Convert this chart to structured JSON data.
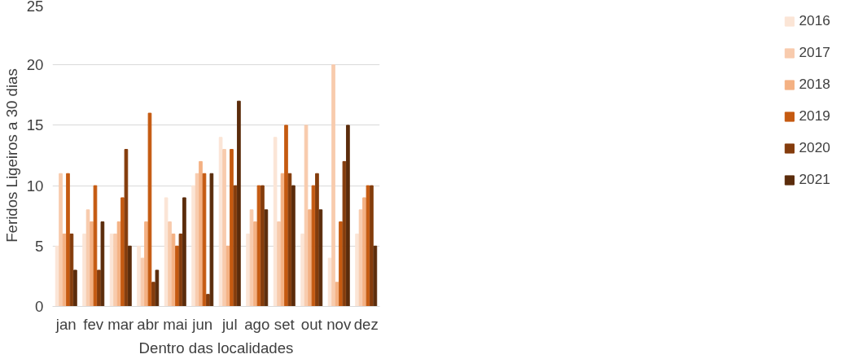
{
  "chart_data": {
    "type": "bar",
    "xlabel": "Dentro das localidades",
    "ylabel": "Feridos Ligeiros a 30 dias",
    "categories": [
      "jan",
      "fev",
      "mar",
      "abr",
      "mai",
      "jun",
      "jul",
      "ago",
      "set",
      "out",
      "nov",
      "dez"
    ],
    "series": [
      {
        "name": "2016",
        "color": "#fbe5d6",
        "values": [
          5,
          6,
          6,
          5,
          9,
          10,
          14,
          6,
          14,
          6,
          4,
          6
        ]
      },
      {
        "name": "2017",
        "color": "#f8cbad",
        "values": [
          11,
          8,
          6,
          4,
          7,
          11,
          13,
          8,
          7,
          15,
          20,
          8
        ]
      },
      {
        "name": "2018",
        "color": "#f4b183",
        "values": [
          6,
          7,
          7,
          7,
          6,
          12,
          5,
          7,
          11,
          8,
          2,
          9
        ]
      },
      {
        "name": "2019",
        "color": "#c55a11",
        "values": [
          11,
          10,
          9,
          16,
          5,
          11,
          13,
          10,
          15,
          10,
          7,
          10
        ]
      },
      {
        "name": "2020",
        "color": "#843c0c",
        "values": [
          6,
          3,
          13,
          2,
          6,
          1,
          10,
          10,
          11,
          11,
          12,
          10
        ]
      },
      {
        "name": "2021",
        "color": "#5b2c0b",
        "values": [
          3,
          7,
          5,
          3,
          9,
          11,
          17,
          8,
          10,
          8,
          15,
          5
        ]
      }
    ],
    "ylim": [
      0,
      25
    ],
    "yticks": [
      0,
      5,
      10,
      15,
      20,
      25
    ],
    "grid": "y",
    "legend": "right"
  }
}
